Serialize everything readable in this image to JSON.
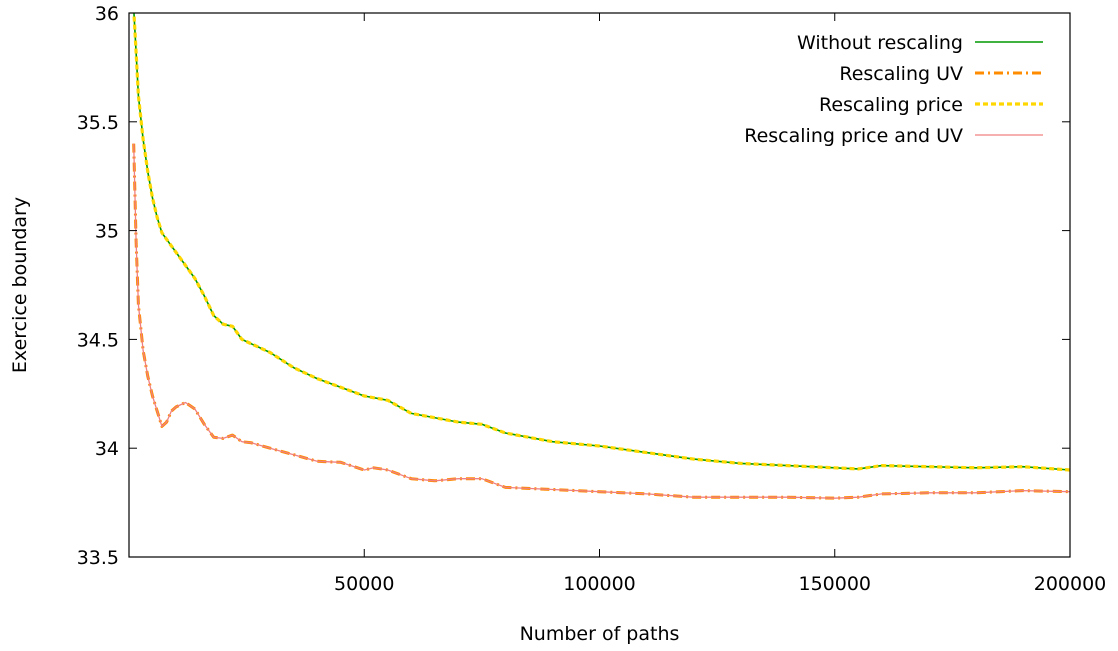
{
  "chart_data": {
    "type": "line",
    "title": "",
    "xlabel": "Number of paths",
    "ylabel": "Exercice boundary",
    "xlim": [
      0,
      200000
    ],
    "ylim": [
      33.5,
      36
    ],
    "x_ticks": [
      50000,
      100000,
      150000,
      200000
    ],
    "x_tick_labels": [
      "50000",
      "100000",
      "150000",
      "200000"
    ],
    "y_ticks": [
      33.5,
      34,
      34.5,
      35,
      35.5,
      36
    ],
    "y_tick_labels": [
      "33.5",
      "34",
      "34.5",
      "35",
      "35.5",
      "36"
    ],
    "grid": false,
    "legend_position": "top-right",
    "series": [
      {
        "name": "Without rescaling",
        "color": "#009900",
        "style": "solid",
        "x": [
          1000,
          1500,
          2000,
          3000,
          4000,
          5000,
          6000,
          7000,
          8000,
          9000,
          10000,
          12000,
          14000,
          16000,
          18000,
          20000,
          22000,
          24000,
          26000,
          30000,
          35000,
          40000,
          45000,
          50000,
          55000,
          60000,
          70000,
          75000,
          80000,
          90000,
          100000,
          110000,
          120000,
          130000,
          140000,
          150000,
          155000,
          160000,
          170000,
          180000,
          190000,
          200000
        ],
        "y": [
          36.02,
          35.82,
          35.62,
          35.42,
          35.27,
          35.15,
          35.06,
          34.99,
          34.96,
          34.93,
          34.9,
          34.84,
          34.78,
          34.7,
          34.61,
          34.57,
          34.56,
          34.5,
          34.48,
          34.44,
          34.37,
          34.32,
          34.28,
          34.24,
          34.22,
          34.16,
          34.12,
          34.11,
          34.07,
          34.03,
          34.01,
          33.98,
          33.95,
          33.93,
          33.92,
          33.91,
          33.905,
          33.92,
          33.915,
          33.91,
          33.915,
          33.9
        ]
      },
      {
        "name": "Rescaling UV",
        "color": "#ff8c00",
        "style": "dash-dot",
        "x": [
          1000,
          1500,
          2000,
          3000,
          4000,
          5000,
          6000,
          7000,
          8000,
          9000,
          10000,
          12000,
          14000,
          16000,
          18000,
          20000,
          22000,
          24000,
          26000,
          30000,
          35000,
          40000,
          45000,
          50000,
          52000,
          55000,
          60000,
          65000,
          70000,
          75000,
          80000,
          90000,
          100000,
          110000,
          120000,
          130000,
          140000,
          150000,
          155000,
          160000,
          170000,
          180000,
          190000,
          200000
        ],
        "y": [
          35.4,
          34.95,
          34.66,
          34.45,
          34.33,
          34.24,
          34.17,
          34.1,
          34.12,
          34.17,
          34.19,
          34.21,
          34.18,
          34.11,
          34.05,
          34.045,
          34.06,
          34.03,
          34.025,
          34.0,
          33.97,
          33.94,
          33.935,
          33.9,
          33.91,
          33.9,
          33.86,
          33.85,
          33.86,
          33.86,
          33.82,
          33.81,
          33.8,
          33.79,
          33.775,
          33.775,
          33.775,
          33.77,
          33.775,
          33.79,
          33.795,
          33.795,
          33.805,
          33.8
        ]
      },
      {
        "name": "Rescaling price",
        "color": "#ffd700",
        "style": "dashed",
        "x": [
          1000,
          1500,
          2000,
          3000,
          4000,
          5000,
          6000,
          7000,
          8000,
          9000,
          10000,
          12000,
          14000,
          16000,
          18000,
          20000,
          22000,
          24000,
          26000,
          30000,
          35000,
          40000,
          45000,
          50000,
          55000,
          60000,
          70000,
          75000,
          80000,
          90000,
          100000,
          110000,
          120000,
          130000,
          140000,
          150000,
          155000,
          160000,
          170000,
          180000,
          190000,
          200000
        ],
        "y": [
          36.02,
          35.82,
          35.62,
          35.42,
          35.27,
          35.15,
          35.06,
          34.99,
          34.96,
          34.93,
          34.9,
          34.84,
          34.78,
          34.7,
          34.61,
          34.57,
          34.56,
          34.5,
          34.48,
          34.44,
          34.37,
          34.32,
          34.28,
          34.24,
          34.22,
          34.16,
          34.12,
          34.11,
          34.07,
          34.03,
          34.01,
          33.98,
          33.95,
          33.93,
          33.92,
          33.91,
          33.905,
          33.92,
          33.915,
          33.91,
          33.915,
          33.9
        ]
      },
      {
        "name": "Rescaling price and UV",
        "color": "#f08080",
        "style": "solid",
        "x": [
          1000,
          1500,
          2000,
          3000,
          4000,
          5000,
          6000,
          7000,
          8000,
          9000,
          10000,
          12000,
          14000,
          16000,
          18000,
          20000,
          22000,
          24000,
          26000,
          30000,
          35000,
          40000,
          45000,
          50000,
          52000,
          55000,
          60000,
          65000,
          70000,
          75000,
          80000,
          90000,
          100000,
          110000,
          120000,
          130000,
          140000,
          150000,
          155000,
          160000,
          170000,
          180000,
          190000,
          200000
        ],
        "y": [
          35.4,
          34.95,
          34.66,
          34.45,
          34.33,
          34.24,
          34.17,
          34.1,
          34.12,
          34.17,
          34.19,
          34.21,
          34.18,
          34.11,
          34.05,
          34.045,
          34.06,
          34.03,
          34.025,
          34.0,
          33.97,
          33.94,
          33.935,
          33.9,
          33.91,
          33.9,
          33.86,
          33.85,
          33.86,
          33.86,
          33.82,
          33.81,
          33.8,
          33.79,
          33.775,
          33.775,
          33.775,
          33.77,
          33.775,
          33.79,
          33.795,
          33.795,
          33.805,
          33.8
        ]
      }
    ]
  }
}
